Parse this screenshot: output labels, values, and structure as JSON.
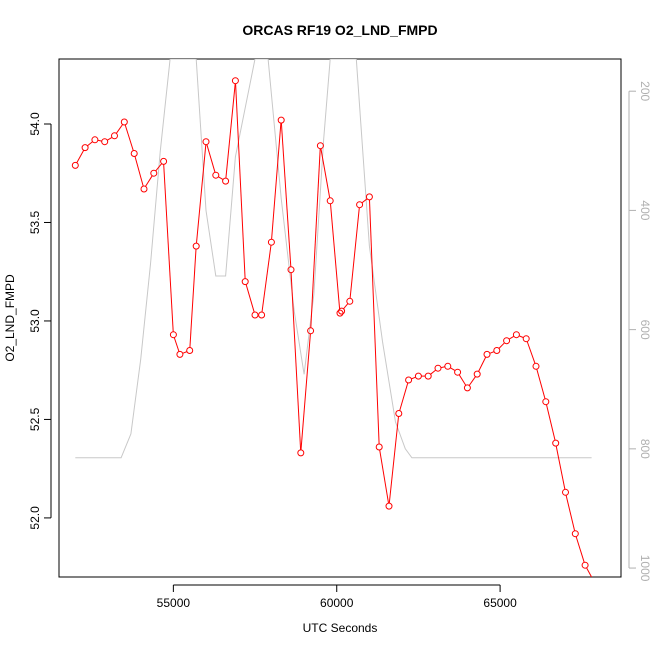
{
  "chart_data": {
    "type": "line",
    "title": "ORCAS RF19 O2_LND_FMPD",
    "xlabel": "UTC Seconds",
    "ylabel": "O2_LND_FMPD",
    "xlim": [
      51500,
      68700
    ],
    "ylim": [
      51.7,
      54.33
    ],
    "y2lim": [
      1015,
      146
    ],
    "y2_inverted": true,
    "x_ticks": [
      55000,
      60000,
      65000
    ],
    "y_ticks": [
      52.0,
      52.5,
      53.0,
      53.5,
      54.0
    ],
    "y_tick_labels": [
      "52.0",
      "52.5",
      "53.0",
      "53.5",
      "54.0"
    ],
    "y2_ticks": [
      200,
      400,
      600,
      800,
      1000
    ],
    "grid": false,
    "series": [
      {
        "axis": "left",
        "style": "line+circle",
        "color": "#ff0000",
        "x": [
          52000,
          52300,
          52600,
          52900,
          53200,
          53500,
          53800,
          54100,
          54400,
          54700,
          55000,
          55200,
          55500,
          55700,
          56000,
          56300,
          56600,
          56900,
          57200,
          57500,
          57700,
          58000,
          58300,
          58600,
          58900,
          59200,
          59500,
          59800,
          60100,
          60150,
          60400,
          60700,
          61000,
          61300,
          61600,
          61900,
          62200,
          62500,
          62800,
          63100,
          63400,
          63700,
          64000,
          64300,
          64600,
          64900,
          65200,
          65500,
          65800,
          66100,
          66400,
          66700,
          67000,
          67300,
          67600,
          67900
        ],
        "y": [
          53.79,
          53.88,
          53.92,
          53.91,
          53.94,
          54.01,
          53.85,
          53.67,
          53.75,
          53.81,
          52.93,
          52.83,
          52.85,
          53.38,
          53.91,
          53.74,
          53.71,
          54.22,
          53.2,
          53.03,
          53.03,
          53.4,
          54.02,
          53.26,
          52.33,
          52.95,
          53.89,
          53.61,
          53.04,
          53.05,
          53.1,
          53.59,
          53.63,
          52.36,
          52.06,
          52.53,
          52.7,
          52.72,
          52.72,
          52.76,
          52.77,
          52.74,
          52.66,
          52.73,
          52.83,
          52.85,
          52.9,
          52.93,
          52.91,
          52.77,
          52.59,
          52.38,
          52.13,
          51.92,
          51.76,
          51.67
        ]
      },
      {
        "axis": "right",
        "style": "line",
        "color": "#c8c8c8",
        "x": [
          52000,
          52500,
          53000,
          53400,
          53700,
          54000,
          54300,
          54600,
          54900,
          55700,
          56000,
          56300,
          56600,
          56900,
          57500,
          57900,
          58300,
          58700,
          59000,
          59300,
          59600,
          59800,
          60600,
          61000,
          61400,
          61800,
          62100,
          62300,
          63000,
          64000,
          65000,
          66000,
          67000,
          67800
        ],
        "y": [
          815,
          815,
          815,
          815,
          775,
          650,
          490,
          300,
          146,
          146,
          400,
          510,
          510,
          310,
          146,
          146,
          380,
          570,
          675,
          540,
          280,
          146,
          146,
          460,
          620,
          755,
          800,
          815,
          815,
          815,
          815,
          815,
          815,
          815
        ]
      }
    ]
  }
}
